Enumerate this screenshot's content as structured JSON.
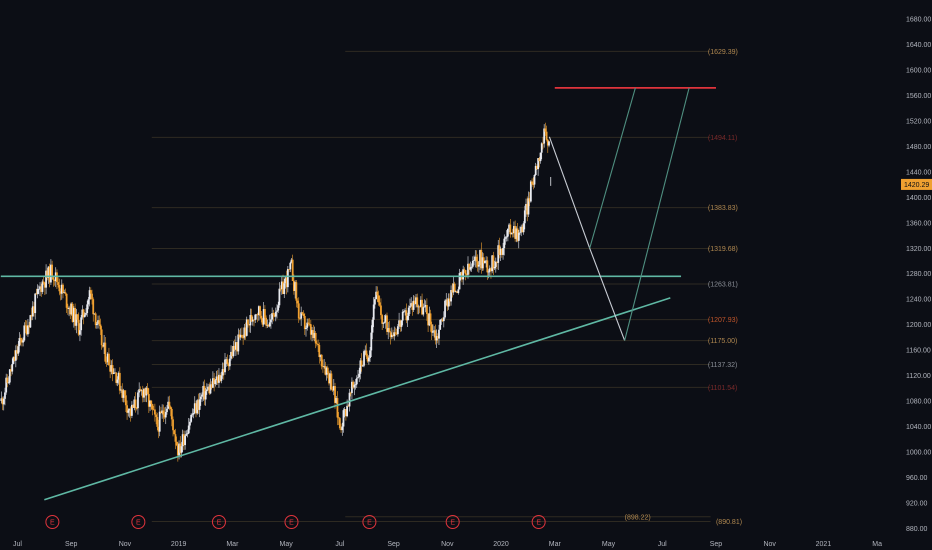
{
  "colors": {
    "background": "#0c0e15",
    "axis_text": "#b2b5be",
    "candle_up": "#e8eaf0",
    "candle_down": "#f0a030",
    "support_line": "#5fb8a4",
    "trend_line": "#5fb8a4",
    "target_line": "#e0343c",
    "projection_line": "#c8ccd4",
    "projection_up_line": "#4f8f80",
    "price_badge": "#f0a030",
    "earnings_marker": "#e0343c",
    "fib_line": "#2e2a22"
  },
  "chart_data": {
    "type": "candlestick",
    "title": "",
    "xlabel": "",
    "ylabel": "",
    "ylim": [
      868,
      1710
    ],
    "y_ticks": [
      "880.00",
      "920.00",
      "960.00",
      "1000.00",
      "1040.00",
      "1080.00",
      "1120.00",
      "1160.00",
      "1200.00",
      "1240.00",
      "1280.00",
      "1320.00",
      "1360.00",
      "1400.00",
      "1440.00",
      "1480.00",
      "1520.00",
      "1560.00",
      "1600.00",
      "1640.00",
      "1680.00"
    ],
    "x_tick_labels": [
      "Jul",
      "Sep",
      "Nov",
      "2019",
      "Mar",
      "May",
      "Jul",
      "Sep",
      "Nov",
      "2020",
      "Mar",
      "May",
      "Jul",
      "Sep",
      "Nov",
      "2021",
      "Ma"
    ],
    "x_ticks_month_index": [
      0,
      2,
      4,
      6,
      8,
      10,
      12,
      14,
      16,
      18,
      20,
      22,
      24,
      26,
      28,
      30,
      32
    ],
    "x_range_month_index": [
      -0.65,
      32.85
    ],
    "last_price_badge": "1420.29",
    "fib_levels": [
      {
        "value": 1629.39,
        "label": "(1629.39)",
        "color": "#b08850"
      },
      {
        "value": 1494.11,
        "label": "(1494.11)",
        "color": "#7a2a2a"
      },
      {
        "value": 1383.83,
        "label": "(1383.83)",
        "color": "#b08850"
      },
      {
        "value": 1319.68,
        "label": "(1319.68)",
        "color": "#b08850"
      },
      {
        "value": 1263.81,
        "label": "(1263.81)",
        "color": "#8a8e96"
      },
      {
        "value": 1207.93,
        "label": "(1207.93)",
        "color": "#c0552a"
      },
      {
        "value": 1175.0,
        "label": "(1175.00)",
        "color": "#b08850"
      },
      {
        "value": 1137.32,
        "label": "(1137.32)",
        "color": "#8a8e96"
      },
      {
        "value": 1101.54,
        "label": "(1101.54)",
        "color": "#7a2a2a"
      },
      {
        "value": 898.22,
        "label": "(898.22)",
        "color": "#b08850"
      },
      {
        "value": 890.81,
        "label": "(890.81)",
        "color": "#b08850"
      }
    ],
    "support_line": {
      "x": [
        -0.62,
        24.7
      ],
      "y": [
        1276,
        1276
      ]
    },
    "trend_line": {
      "x": [
        1.0,
        24.3
      ],
      "y": [
        925,
        1242
      ]
    },
    "target_line": {
      "x": [
        20.0,
        26.0
      ],
      "y": [
        1572,
        1572
      ]
    },
    "projection_paths": [
      {
        "name": "",
        "x": [
          19.8,
          21.3,
          22.6
        ],
        "y": [
          1495,
          1320,
          1175
        ]
      },
      {
        "name": "",
        "x": [
          21.3,
          23.0
        ],
        "y": [
          1320,
          1572
        ]
      },
      {
        "name": "",
        "x": [
          22.6,
          25.0
        ],
        "y": [
          1175,
          1572
        ]
      }
    ],
    "earnings_markers": [
      1.3,
      4.5,
      7.5,
      10.2,
      13.1,
      16.2,
      19.4
    ],
    "earnings_label": "E",
    "price_anchors": [
      [
        -0.6,
        1080
      ],
      [
        0.0,
        1160
      ],
      [
        0.5,
        1215
      ],
      [
        0.9,
        1265
      ],
      [
        1.3,
        1285
      ],
      [
        1.8,
        1240
      ],
      [
        2.3,
        1195
      ],
      [
        2.7,
        1250
      ],
      [
        3.2,
        1160
      ],
      [
        3.7,
        1120
      ],
      [
        4.2,
        1060
      ],
      [
        4.7,
        1100
      ],
      [
        5.2,
        1040
      ],
      [
        5.6,
        1080
      ],
      [
        6.0,
        1000
      ],
      [
        6.4,
        1050
      ],
      [
        6.9,
        1090
      ],
      [
        7.4,
        1110
      ],
      [
        7.9,
        1150
      ],
      [
        8.4,
        1185
      ],
      [
        8.9,
        1225
      ],
      [
        9.4,
        1200
      ],
      [
        9.8,
        1250
      ],
      [
        10.2,
        1290
      ],
      [
        10.5,
        1210
      ],
      [
        10.9,
        1190
      ],
      [
        11.3,
        1150
      ],
      [
        11.7,
        1110
      ],
      [
        12.0,
        1040
      ],
      [
        12.4,
        1090
      ],
      [
        12.8,
        1140
      ],
      [
        13.1,
        1160
      ],
      [
        13.3,
        1250
      ],
      [
        13.6,
        1205
      ],
      [
        14.0,
        1190
      ],
      [
        14.4,
        1210
      ],
      [
        14.8,
        1240
      ],
      [
        15.2,
        1220
      ],
      [
        15.6,
        1180
      ],
      [
        16.0,
        1240
      ],
      [
        16.4,
        1265
      ],
      [
        16.8,
        1285
      ],
      [
        17.2,
        1305
      ],
      [
        17.6,
        1290
      ],
      [
        18.0,
        1320
      ],
      [
        18.4,
        1355
      ],
      [
        18.7,
        1340
      ],
      [
        19.0,
        1390
      ],
      [
        19.3,
        1450
      ],
      [
        19.6,
        1495
      ],
      [
        19.8,
        1480
      ]
    ]
  }
}
